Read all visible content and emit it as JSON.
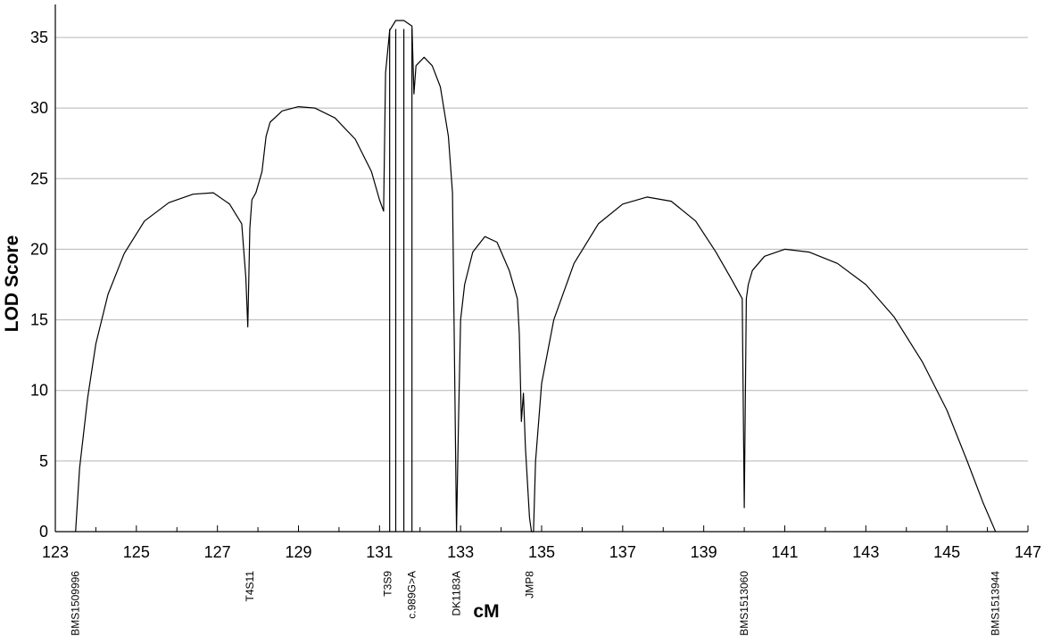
{
  "chart_data": {
    "type": "line",
    "title": "",
    "xlabel": "cM",
    "ylabel": "LOD Score",
    "xlim": [
      123,
      147
    ],
    "ylim": [
      0,
      37
    ],
    "x_ticks": [
      123,
      125,
      127,
      129,
      131,
      133,
      135,
      137,
      139,
      141,
      143,
      145,
      147
    ],
    "y_ticks": [
      0,
      5,
      10,
      15,
      20,
      25,
      30,
      35
    ],
    "grid": "horizontal",
    "line_color": "#000000",
    "markers": [
      {
        "name": "BMS1509996",
        "x": 123.5
      },
      {
        "name": "T4S11",
        "x": 127.8
      },
      {
        "name": "T3S9",
        "x": 131.2
      },
      {
        "name": "c.989G>A",
        "x": 131.8
      },
      {
        "name": "DK1183A",
        "x": 132.9
      },
      {
        "name": "JMP8",
        "x": 134.7
      },
      {
        "name": "BMS1513060",
        "x": 140.0
      },
      {
        "name": "BMS1513944",
        "x": 146.2
      }
    ],
    "series": [
      {
        "x": [
          123.5,
          123.6,
          123.8,
          124.0,
          124.3,
          124.7,
          125.2,
          125.8,
          126.4,
          126.9,
          127.3,
          127.6,
          127.7,
          127.75,
          127.8,
          127.85,
          127.95,
          128.1,
          128.2,
          128.3,
          128.6,
          129.0,
          129.4,
          129.9,
          130.4,
          130.8,
          131.0,
          131.1,
          131.15,
          131.25,
          131.4,
          131.6,
          131.8,
          131.85,
          131.9,
          132.1,
          132.3,
          132.5,
          132.7,
          132.8,
          132.85,
          132.9,
          132.95,
          133.0,
          133.1,
          133.3,
          133.6,
          133.9,
          134.2,
          134.4,
          134.45,
          134.5,
          134.55,
          134.6,
          134.7,
          134.75,
          134.8,
          134.85,
          135.0,
          135.3,
          135.8,
          136.4,
          137.0,
          137.6,
          138.2,
          138.8,
          139.3,
          139.7,
          139.95,
          140.0,
          140.05,
          140.1,
          140.2,
          140.5,
          141.0,
          141.6,
          142.3,
          143.0,
          143.7,
          144.4,
          145.0,
          145.5,
          145.9,
          146.2
        ],
        "values": [
          0,
          4.5,
          9.5,
          13.3,
          16.8,
          19.7,
          22.0,
          23.3,
          23.9,
          24.0,
          23.2,
          21.8,
          18.0,
          14.5,
          21.5,
          23.5,
          24.0,
          25.5,
          28.0,
          29.0,
          29.8,
          30.1,
          30.0,
          29.3,
          27.8,
          25.5,
          23.5,
          22.7,
          32.5,
          35.5,
          36.2,
          36.2,
          35.8,
          31.0,
          33.0,
          33.6,
          33.0,
          31.5,
          28.0,
          24.0,
          12.0,
          0,
          8.0,
          15.0,
          17.5,
          19.8,
          20.9,
          20.5,
          18.5,
          16.5,
          14.0,
          7.8,
          9.8,
          6.0,
          1.0,
          0,
          0,
          5.0,
          10.5,
          15.0,
          19.0,
          21.8,
          23.2,
          23.7,
          23.4,
          22.0,
          19.8,
          17.8,
          16.5,
          1.7,
          16.5,
          17.5,
          18.5,
          19.5,
          20.0,
          19.8,
          19.0,
          17.5,
          15.2,
          12.0,
          8.6,
          5.0,
          2.0,
          0
        ],
        "verticals": [
          131.25,
          131.4,
          131.6,
          131.8
        ]
      }
    ]
  }
}
